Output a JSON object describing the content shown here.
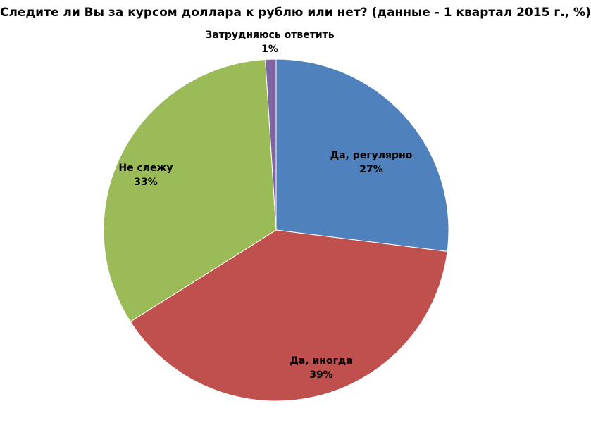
{
  "chart_data": {
    "type": "pie",
    "title": "Следите ли Вы за курсом доллара к рублю или нет? (данные - 1 квартал 2015 г., %)",
    "slices": [
      {
        "label": "Да, регулярно",
        "value": 27,
        "value_label": "27%",
        "color": "#4F81BD"
      },
      {
        "label": "Да, иногда",
        "value": 39,
        "value_label": "39%",
        "color": "#C0504D"
      },
      {
        "label": "Не слежу",
        "value": 33,
        "value_label": "33%",
        "color": "#9BBB59"
      },
      {
        "label": "Затрудняюсь ответить",
        "value": 1,
        "value_label": "1%",
        "color": "#8064A2"
      }
    ],
    "start_angle": "12 o'clock",
    "direction": "clockwise",
    "legend": "none"
  }
}
